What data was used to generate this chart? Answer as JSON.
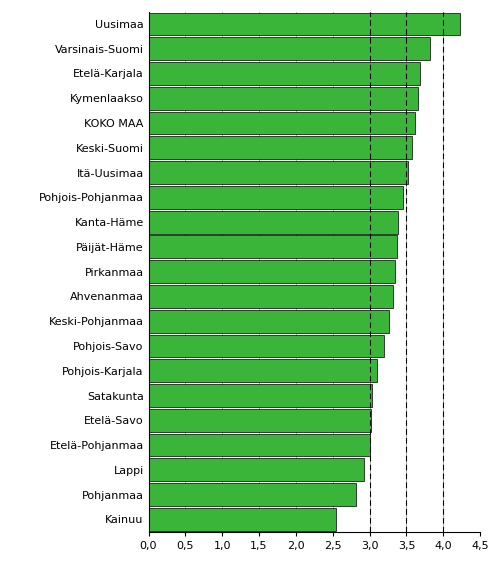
{
  "categories": [
    "Kainuu",
    "Pohjanmaa",
    "Lappi",
    "Etelä-Pohjanmaa",
    "Etelä-Savo",
    "Satakunta",
    "Pohjois-Karjala",
    "Pohjois-Savo",
    "Keski-Pohjanmaa",
    "Ahvenanmaa",
    "Pirkanmaa",
    "Päijät-Häme",
    "Kanta-Häme",
    "Pohjois-Pohjanmaa",
    "Itä-Uusimaa",
    "Keski-Suomi",
    "KOKO MAA",
    "Kymenlaakso",
    "Etelä-Karjala",
    "Varsinais-Suomi",
    "Uusimaa"
  ],
  "values": [
    2.55,
    2.82,
    2.92,
    3.0,
    3.02,
    3.03,
    3.1,
    3.2,
    3.27,
    3.32,
    3.35,
    3.37,
    3.38,
    3.45,
    3.52,
    3.58,
    3.62,
    3.65,
    3.68,
    3.82,
    4.22
  ],
  "bar_color": "#3ab53a",
  "bar_edgecolor": "#000000",
  "background_color": "#ffffff",
  "xlim": [
    0,
    4.5
  ],
  "xticks": [
    0.0,
    0.5,
    1.0,
    1.5,
    2.0,
    2.5,
    3.0,
    3.5,
    4.0,
    4.5
  ],
  "xticklabels": [
    "0,0",
    "0,5",
    "1,0",
    "1,5",
    "2,0",
    "2,5",
    "3,0",
    "3,5",
    "4,0",
    "4,5"
  ],
  "dashed_lines": [
    3.0,
    3.5,
    4.0
  ],
  "tick_fontsize": 8,
  "label_fontsize": 8,
  "bar_linewidth": 0.5,
  "bar_height": 0.92
}
